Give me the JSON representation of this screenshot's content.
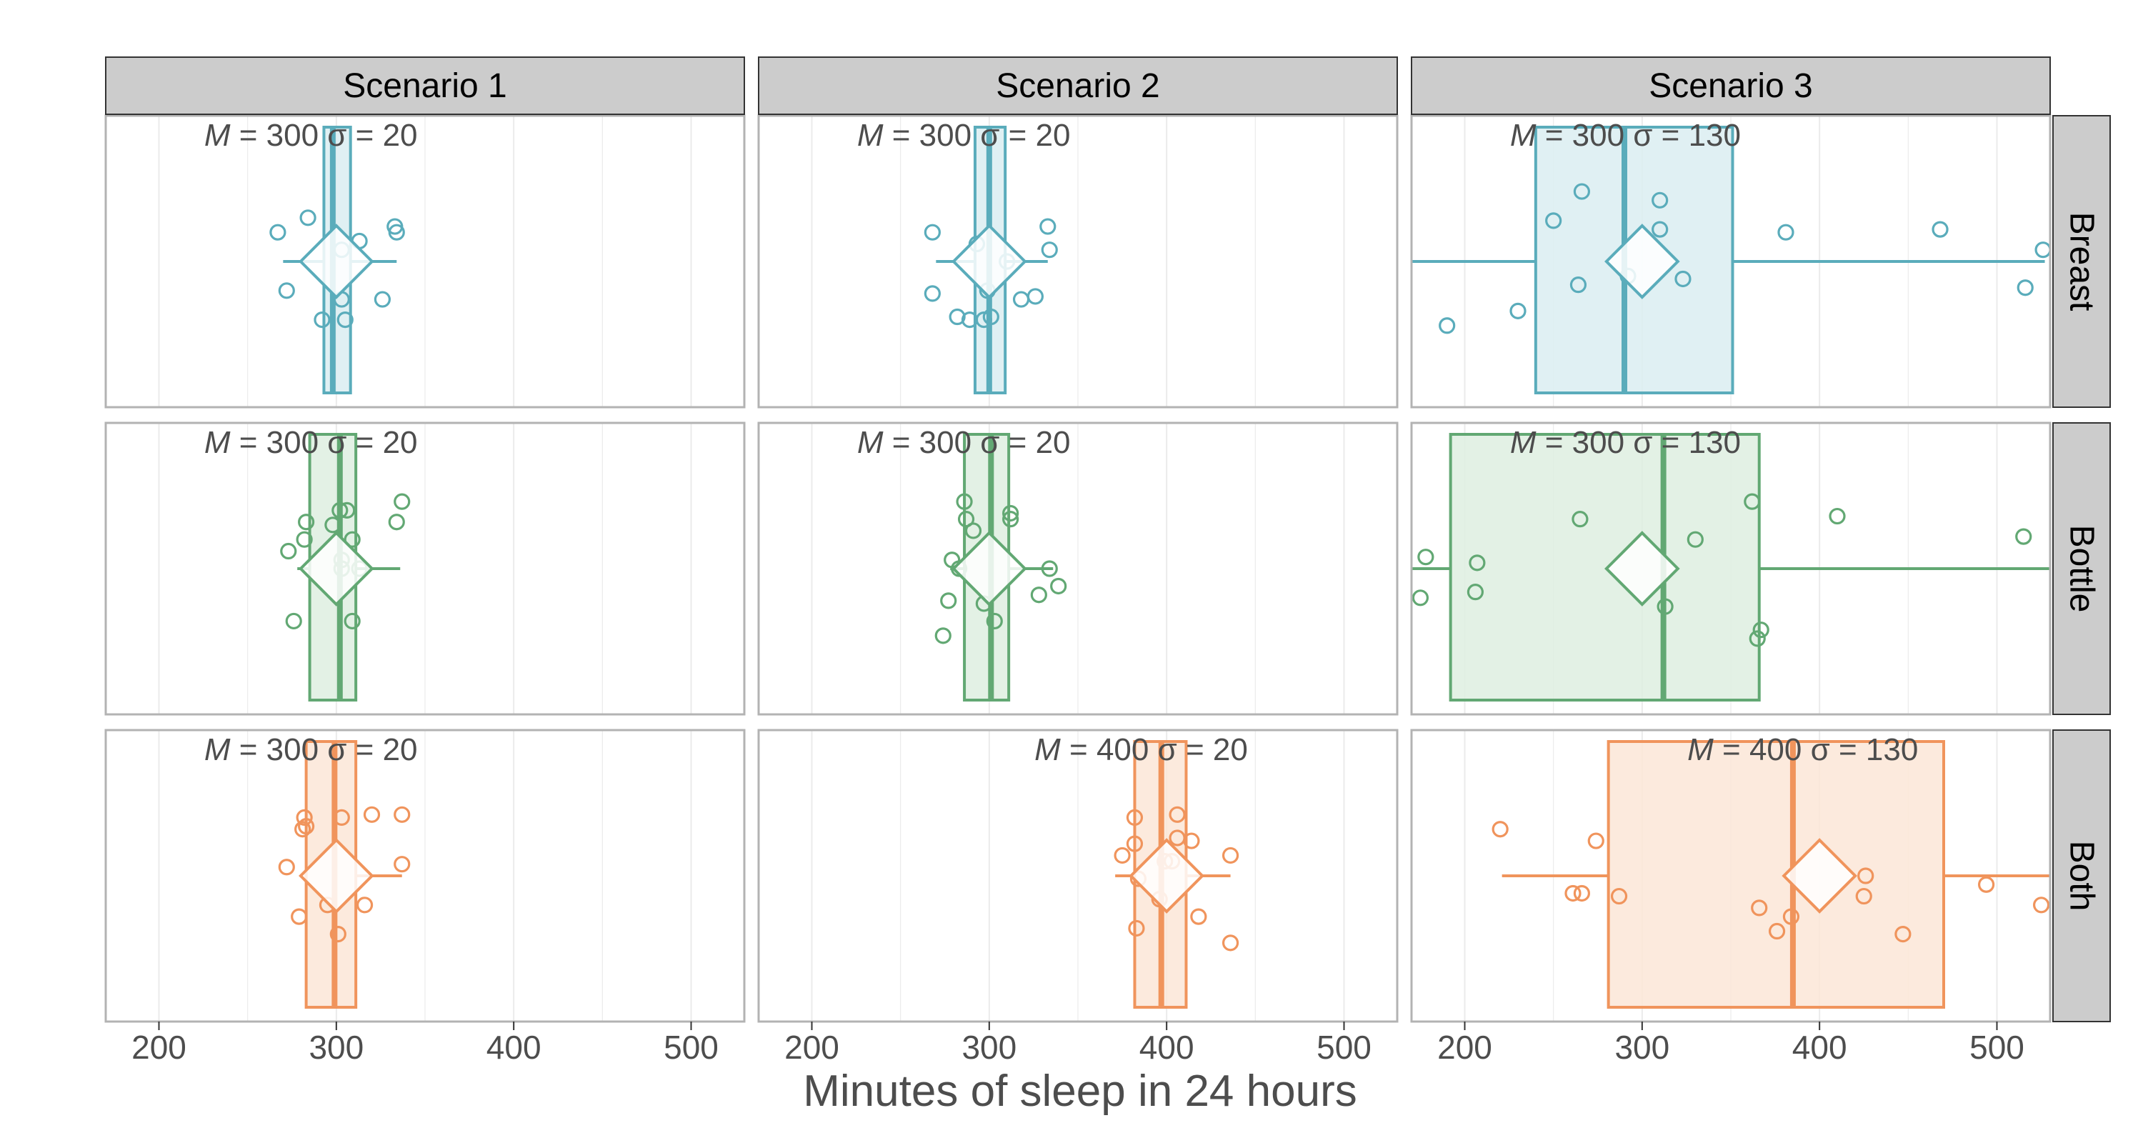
{
  "chart_data": {
    "type": "box",
    "xlabel": "Minutes of sleep in 24 hours",
    "xlim": [
      170,
      530
    ],
    "xticks": [
      200,
      300,
      400,
      500
    ],
    "grid": true,
    "columns": [
      "Scenario 1",
      "Scenario 2",
      "Scenario 3"
    ],
    "rows": [
      "Breast",
      "Bottle",
      "Both"
    ],
    "colors": {
      "Breast": "#5aacbb",
      "Bottle": "#62a873",
      "Both": "#f0945c"
    },
    "fills": {
      "Breast": "#dbedf1",
      "Bottle": "#deeee1",
      "Both": "#fce6d7"
    },
    "panels": [
      {
        "row": "Breast",
        "col": "Scenario 1",
        "label_m": "300",
        "label_s": "20",
        "box": {
          "q1": 293,
          "median": 298,
          "q3": 308,
          "whisker_low": 270,
          "whisker_high": 334
        },
        "mean": 300,
        "points": [
          [
            267,
            0.6
          ],
          [
            284,
            0.65
          ],
          [
            333,
            0.62
          ],
          [
            334,
            0.6
          ],
          [
            313,
            0.57
          ],
          [
            303,
            0.54
          ],
          [
            272,
            0.4
          ],
          [
            303,
            0.37
          ],
          [
            326,
            0.37
          ],
          [
            292,
            0.3
          ],
          [
            305,
            0.3
          ]
        ]
      },
      {
        "row": "Bottle",
        "col": "Scenario 1",
        "label_m": "300",
        "label_s": "20",
        "box": {
          "q1": 285,
          "median": 302,
          "q3": 311,
          "whisker_low": 278,
          "whisker_high": 336
        },
        "mean": 300,
        "points": [
          [
            337,
            0.73
          ],
          [
            334,
            0.66
          ],
          [
            283,
            0.66
          ],
          [
            298,
            0.65
          ],
          [
            309,
            0.6
          ],
          [
            282,
            0.6
          ],
          [
            273,
            0.56
          ],
          [
            303,
            0.53
          ],
          [
            303,
            0.5
          ],
          [
            313,
            0.5
          ],
          [
            276,
            0.32
          ],
          [
            309,
            0.32
          ],
          [
            302,
            0.7
          ],
          [
            306,
            0.7
          ]
        ]
      },
      {
        "row": "Both",
        "col": "Scenario 1",
        "label_m": "300",
        "label_s": "20",
        "box": {
          "q1": 283,
          "median": 299,
          "q3": 311,
          "whisker_low": 282,
          "whisker_high": 337
        },
        "mean": 300,
        "points": [
          [
            282,
            0.7
          ],
          [
            283,
            0.67
          ],
          [
            281,
            0.66
          ],
          [
            303,
            0.7
          ],
          [
            320,
            0.71
          ],
          [
            337,
            0.71
          ],
          [
            272,
            0.53
          ],
          [
            337,
            0.54
          ],
          [
            316,
            0.4
          ],
          [
            295,
            0.4
          ],
          [
            279,
            0.36
          ],
          [
            301,
            0.3
          ]
        ]
      },
      {
        "row": "Breast",
        "col": "Scenario 2",
        "label_m": "300",
        "label_s": "20",
        "box": {
          "q1": 292,
          "median": 300,
          "q3": 309,
          "whisker_low": 270,
          "whisker_high": 333
        },
        "mean": 300,
        "points": [
          [
            268,
            0.6
          ],
          [
            293,
            0.56
          ],
          [
            333,
            0.62
          ],
          [
            334,
            0.54
          ],
          [
            310,
            0.5
          ],
          [
            268,
            0.39
          ],
          [
            299,
            0.4
          ],
          [
            318,
            0.37
          ],
          [
            326,
            0.38
          ],
          [
            282,
            0.31
          ],
          [
            289,
            0.3
          ],
          [
            297,
            0.3
          ],
          [
            301,
            0.31
          ]
        ]
      },
      {
        "row": "Bottle",
        "col": "Scenario 2",
        "label_m": "300",
        "label_s": "20",
        "box": {
          "q1": 286,
          "median": 301,
          "q3": 311,
          "whisker_low": 278,
          "whisker_high": 336
        },
        "mean": 300,
        "points": [
          [
            286,
            0.73
          ],
          [
            312,
            0.69
          ],
          [
            312,
            0.67
          ],
          [
            287,
            0.67
          ],
          [
            291,
            0.63
          ],
          [
            279,
            0.53
          ],
          [
            283,
            0.5
          ],
          [
            334,
            0.5
          ],
          [
            339,
            0.44
          ],
          [
            328,
            0.41
          ],
          [
            297,
            0.38
          ],
          [
            277,
            0.39
          ],
          [
            303,
            0.32
          ],
          [
            274,
            0.27
          ]
        ]
      },
      {
        "row": "Both",
        "col": "Scenario 2",
        "label_m": "400",
        "label_s": "20",
        "box": {
          "q1": 382,
          "median": 397,
          "q3": 411,
          "whisker_low": 371,
          "whisker_high": 436
        },
        "mean": 400,
        "points": [
          [
            406,
            0.71
          ],
          [
            382,
            0.7
          ],
          [
            382,
            0.61
          ],
          [
            406,
            0.63
          ],
          [
            414,
            0.62
          ],
          [
            375,
            0.57
          ],
          [
            436,
            0.57
          ],
          [
            384,
            0.49
          ],
          [
            396,
            0.42
          ],
          [
            418,
            0.36
          ],
          [
            383,
            0.32
          ],
          [
            436,
            0.27
          ],
          [
            399,
            0.55
          ],
          [
            403,
            0.55
          ]
        ]
      },
      {
        "row": "Breast",
        "col": "Scenario 3",
        "label_m": "300",
        "label_s": "130",
        "box": {
          "q1": 240,
          "median": 290,
          "q3": 351,
          "whisker_low": 170,
          "whisker_high": 527
        },
        "mean": 300,
        "points": [
          [
            266,
            0.74
          ],
          [
            310,
            0.71
          ],
          [
            250,
            0.64
          ],
          [
            310,
            0.61
          ],
          [
            381,
            0.6
          ],
          [
            468,
            0.61
          ],
          [
            526,
            0.54
          ],
          [
            292,
            0.45
          ],
          [
            323,
            0.44
          ],
          [
            264,
            0.42
          ],
          [
            516,
            0.41
          ],
          [
            230,
            0.33
          ],
          [
            190,
            0.28
          ]
        ]
      },
      {
        "row": "Bottle",
        "col": "Scenario 3",
        "label_m": "300",
        "label_s": "130",
        "box": {
          "q1": 192,
          "median": 312,
          "q3": 366,
          "whisker_low": 170,
          "whisker_high": 530
        },
        "mean": 300,
        "points": [
          [
            410,
            0.68
          ],
          [
            515,
            0.61
          ],
          [
            330,
            0.6
          ],
          [
            265,
            0.67
          ],
          [
            178,
            0.54
          ],
          [
            207,
            0.52
          ],
          [
            206,
            0.42
          ],
          [
            175,
            0.4
          ],
          [
            313,
            0.37
          ],
          [
            367,
            0.29
          ],
          [
            365,
            0.26
          ],
          [
            362,
            0.73
          ]
        ]
      },
      {
        "row": "Both",
        "col": "Scenario 3",
        "label_m": "400",
        "label_s": "130",
        "box": {
          "q1": 281,
          "median": 385,
          "q3": 470,
          "whisker_low": 221,
          "whisker_high": 530
        },
        "mean": 400,
        "points": [
          [
            220,
            0.66
          ],
          [
            274,
            0.62
          ],
          [
            426,
            0.5
          ],
          [
            494,
            0.47
          ],
          [
            261,
            0.44
          ],
          [
            266,
            0.44
          ],
          [
            287,
            0.43
          ],
          [
            425,
            0.43
          ],
          [
            525,
            0.4
          ],
          [
            366,
            0.39
          ],
          [
            384,
            0.36
          ],
          [
            376,
            0.31
          ],
          [
            447,
            0.3
          ]
        ]
      }
    ]
  }
}
